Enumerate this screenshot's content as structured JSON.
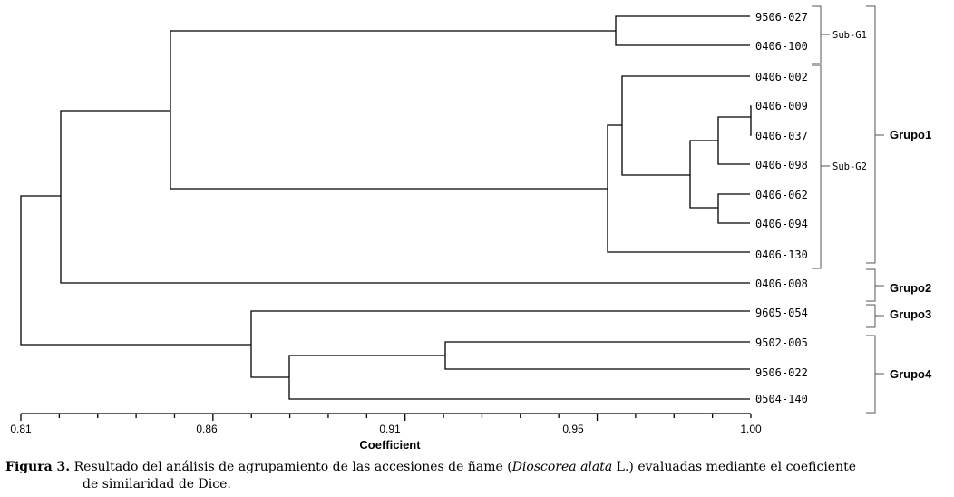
{
  "axis": {
    "ticks": [
      "0.81",
      "0.86",
      "0.91",
      "0.95",
      "1.00"
    ],
    "title": "Coefficient"
  },
  "leaves": [
    "9506-027",
    "0406-100",
    "0406-002",
    "0406-009",
    "0406-037",
    "0406-098",
    "0406-062",
    "0406-094",
    "0406-130",
    "0406-008",
    "9605-054",
    "9502-005",
    "9506-022",
    "0504-140"
  ],
  "subgroups": [
    "Sub-G1",
    "Sub-G2"
  ],
  "groups": [
    "Grupo1",
    "Grupo2",
    "Grupo3",
    "Grupo4"
  ],
  "caption": {
    "label": "Figura 3.",
    "text_before": " Resultado del análisis de agrupamiento de las accesiones de ñame (",
    "species": "Dioscorea alata",
    "text_after": " L.) evaluadas mediante el coeficiente",
    "line2": "de similaridad de Dice."
  }
}
